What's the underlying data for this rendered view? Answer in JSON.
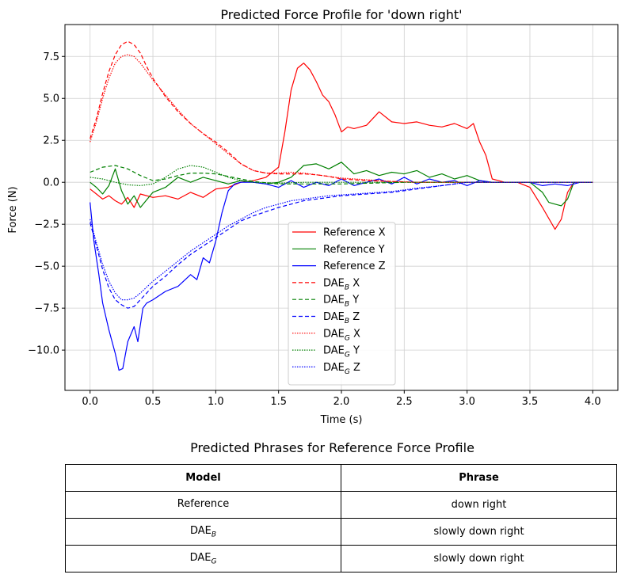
{
  "chart_data": {
    "type": "line",
    "title": "Predicted Force Profile for 'down right'",
    "xlabel": "Time (s)",
    "ylabel": "Force (N)",
    "xlim": [
      -0.2,
      4.2
    ],
    "ylim": [
      -12.4,
      9.4
    ],
    "xticks": [
      0.0,
      0.5,
      1.0,
      1.5,
      2.0,
      2.5,
      3.0,
      3.5,
      4.0
    ],
    "xtick_labels": [
      "0.0",
      "0.5",
      "1.0",
      "1.5",
      "2.0",
      "2.5",
      "3.0",
      "3.5",
      "4.0"
    ],
    "yticks": [
      -10.0,
      -7.5,
      -5.0,
      -2.5,
      0.0,
      2.5,
      5.0,
      7.5
    ],
    "ytick_labels": [
      "−10.0",
      "−7.5",
      "−5.0",
      "−2.5",
      "0.0",
      "2.5",
      "5.0",
      "7.5"
    ],
    "grid": true,
    "legend_position": "lower center",
    "series": [
      {
        "name": "Reference X",
        "color": "#ff0000",
        "dash": "solid",
        "x": [
          0,
          0.05,
          0.1,
          0.15,
          0.2,
          0.25,
          0.3,
          0.35,
          0.4,
          0.5,
          0.6,
          0.7,
          0.8,
          0.9,
          1.0,
          1.1,
          1.2,
          1.3,
          1.4,
          1.5,
          1.55,
          1.6,
          1.65,
          1.7,
          1.75,
          1.8,
          1.85,
          1.9,
          1.95,
          2.0,
          2.05,
          2.1,
          2.2,
          2.3,
          2.4,
          2.5,
          2.6,
          2.7,
          2.8,
          2.9,
          3.0,
          3.05,
          3.1,
          3.15,
          3.2,
          3.25,
          3.3,
          3.4,
          3.5,
          3.6,
          3.7,
          3.75,
          3.8,
          3.85,
          4.0
        ],
        "y": [
          -0.4,
          -0.7,
          -1.0,
          -0.8,
          -1.1,
          -1.3,
          -0.9,
          -1.5,
          -0.7,
          -0.9,
          -0.8,
          -1.0,
          -0.6,
          -0.9,
          -0.4,
          -0.3,
          0.0,
          0.1,
          0.3,
          0.9,
          3.0,
          5.5,
          6.8,
          7.1,
          6.7,
          6.0,
          5.2,
          4.8,
          4.0,
          3.0,
          3.3,
          3.2,
          3.4,
          4.2,
          3.6,
          3.5,
          3.6,
          3.4,
          3.3,
          3.5,
          3.2,
          3.5,
          2.4,
          1.6,
          0.2,
          0.1,
          0.0,
          0.0,
          -0.3,
          -1.5,
          -2.8,
          -2.2,
          -0.6,
          0.0,
          0.0
        ]
      },
      {
        "name": "Reference Y",
        "color": "#008000",
        "dash": "solid",
        "x": [
          0,
          0.05,
          0.1,
          0.15,
          0.2,
          0.25,
          0.3,
          0.35,
          0.4,
          0.5,
          0.6,
          0.7,
          0.8,
          0.9,
          1.0,
          1.1,
          1.2,
          1.3,
          1.4,
          1.5,
          1.6,
          1.7,
          1.8,
          1.9,
          2.0,
          2.1,
          2.2,
          2.3,
          2.4,
          2.5,
          2.6,
          2.7,
          2.8,
          2.9,
          3.0,
          3.1,
          3.2,
          3.3,
          3.4,
          3.5,
          3.6,
          3.65,
          3.7,
          3.75,
          3.8,
          3.85,
          4.0
        ],
        "y": [
          0.0,
          -0.3,
          -0.7,
          -0.2,
          0.8,
          -0.5,
          -1.3,
          -0.8,
          -1.5,
          -0.6,
          -0.3,
          0.3,
          0.0,
          0.3,
          0.1,
          -0.1,
          0.1,
          0.0,
          -0.1,
          0.0,
          0.3,
          1.0,
          1.1,
          0.8,
          1.2,
          0.5,
          0.7,
          0.4,
          0.6,
          0.5,
          0.7,
          0.3,
          0.5,
          0.2,
          0.4,
          0.1,
          0.0,
          0.0,
          0.0,
          0.0,
          -0.6,
          -1.2,
          -1.3,
          -1.4,
          -1.0,
          0.0,
          0.0
        ]
      },
      {
        "name": "Reference Z",
        "color": "#0000ff",
        "dash": "solid",
        "x": [
          0,
          0.03,
          0.07,
          0.1,
          0.15,
          0.2,
          0.23,
          0.26,
          0.3,
          0.35,
          0.38,
          0.42,
          0.45,
          0.5,
          0.6,
          0.7,
          0.8,
          0.85,
          0.9,
          0.95,
          1.0,
          1.05,
          1.1,
          1.15,
          1.2,
          1.3,
          1.4,
          1.5,
          1.6,
          1.7,
          1.8,
          1.9,
          2.0,
          2.1,
          2.2,
          2.3,
          2.4,
          2.5,
          2.6,
          2.7,
          2.8,
          2.9,
          3.0,
          3.1,
          3.2,
          3.3,
          3.4,
          3.5,
          3.6,
          3.7,
          3.8,
          3.9,
          4.0
        ],
        "y": [
          -1.2,
          -3.5,
          -5.5,
          -7.2,
          -8.8,
          -10.2,
          -11.2,
          -11.1,
          -9.5,
          -8.6,
          -9.5,
          -7.5,
          -7.2,
          -7.0,
          -6.5,
          -6.2,
          -5.5,
          -5.8,
          -4.5,
          -4.8,
          -3.5,
          -1.8,
          -0.5,
          -0.1,
          0.0,
          0.0,
          -0.1,
          -0.3,
          0.1,
          -0.3,
          0.0,
          -0.2,
          0.2,
          -0.2,
          0.0,
          0.2,
          -0.1,
          0.3,
          -0.1,
          0.2,
          0.0,
          0.1,
          -0.2,
          0.1,
          0.0,
          0.0,
          0.0,
          0.0,
          -0.2,
          -0.1,
          -0.2,
          0.0,
          0.0
        ]
      },
      {
        "name": "DAE_B X",
        "color": "#ff0000",
        "dash": "dashed",
        "x": [
          0,
          0.05,
          0.1,
          0.15,
          0.2,
          0.25,
          0.3,
          0.35,
          0.4,
          0.45,
          0.5,
          0.6,
          0.7,
          0.8,
          0.9,
          1.0,
          1.1,
          1.2,
          1.3,
          1.4,
          1.5,
          1.6,
          1.7,
          1.8,
          1.9,
          2.0,
          2.2,
          2.4,
          2.6,
          2.8,
          3.0,
          3.2,
          3.5,
          4.0
        ],
        "y": [
          2.6,
          3.8,
          5.3,
          6.6,
          7.6,
          8.2,
          8.4,
          8.2,
          7.7,
          6.9,
          6.2,
          5.1,
          4.2,
          3.5,
          2.9,
          2.4,
          1.8,
          1.1,
          0.7,
          0.55,
          0.5,
          0.5,
          0.5,
          0.45,
          0.35,
          0.2,
          0.1,
          0.05,
          0.0,
          0.0,
          0.0,
          0.0,
          0.0,
          0.0
        ]
      },
      {
        "name": "DAE_B Y",
        "color": "#008000",
        "dash": "dashed",
        "x": [
          0,
          0.1,
          0.2,
          0.3,
          0.4,
          0.5,
          0.6,
          0.7,
          0.8,
          0.9,
          1.0,
          1.1,
          1.2,
          1.3,
          1.5,
          1.7,
          2.0,
          2.5,
          3.0,
          3.5,
          4.0
        ],
        "y": [
          0.6,
          0.9,
          1.0,
          0.8,
          0.4,
          0.1,
          0.2,
          0.4,
          0.55,
          0.55,
          0.5,
          0.35,
          0.2,
          0.05,
          -0.1,
          -0.1,
          -0.1,
          0.0,
          0.0,
          0.0,
          0.0
        ]
      },
      {
        "name": "DAE_B Z",
        "color": "#0000ff",
        "dash": "dashed",
        "x": [
          0,
          0.05,
          0.1,
          0.15,
          0.2,
          0.25,
          0.3,
          0.35,
          0.4,
          0.5,
          0.6,
          0.7,
          0.8,
          0.9,
          1.0,
          1.1,
          1.2,
          1.3,
          1.4,
          1.5,
          1.6,
          1.7,
          1.8,
          1.9,
          2.0,
          2.2,
          2.4,
          2.6,
          2.8,
          3.0,
          3.5,
          4.0
        ],
        "y": [
          -2.4,
          -3.8,
          -5.2,
          -6.3,
          -7.0,
          -7.3,
          -7.5,
          -7.4,
          -7.0,
          -6.2,
          -5.6,
          -4.9,
          -4.3,
          -3.8,
          -3.3,
          -2.8,
          -2.3,
          -2.0,
          -1.75,
          -1.5,
          -1.3,
          -1.1,
          -1.0,
          -0.9,
          -0.8,
          -0.7,
          -0.6,
          -0.4,
          -0.2,
          0.0,
          0.0,
          0.0
        ]
      },
      {
        "name": "DAE_G X",
        "color": "#ff0000",
        "dash": "dotted",
        "x": [
          0,
          0.05,
          0.1,
          0.15,
          0.2,
          0.25,
          0.3,
          0.35,
          0.4,
          0.45,
          0.5,
          0.6,
          0.7,
          0.8,
          0.9,
          1.0,
          1.1,
          1.2,
          1.3,
          1.4,
          1.5,
          1.6,
          1.7,
          1.8,
          1.9,
          2.0,
          2.2,
          2.4,
          2.6,
          2.8,
          3.0,
          3.5,
          4.0
        ],
        "y": [
          2.4,
          3.6,
          5.0,
          6.2,
          7.1,
          7.5,
          7.6,
          7.5,
          7.1,
          6.6,
          6.1,
          5.2,
          4.3,
          3.5,
          2.9,
          2.3,
          1.7,
          1.1,
          0.7,
          0.55,
          0.55,
          0.6,
          0.55,
          0.45,
          0.35,
          0.25,
          0.15,
          0.05,
          0.0,
          0.0,
          0.0,
          0.0,
          0.0
        ]
      },
      {
        "name": "DAE_G Y",
        "color": "#008000",
        "dash": "dotted",
        "x": [
          0,
          0.1,
          0.2,
          0.3,
          0.4,
          0.5,
          0.6,
          0.7,
          0.8,
          0.9,
          1.0,
          1.1,
          1.2,
          1.3,
          1.5,
          1.7,
          2.0,
          2.5,
          3.0,
          3.5,
          4.0
        ],
        "y": [
          0.3,
          0.2,
          0.0,
          -0.15,
          -0.2,
          -0.1,
          0.3,
          0.8,
          1.0,
          0.9,
          0.6,
          0.3,
          0.1,
          0.0,
          -0.05,
          0.0,
          0.0,
          0.0,
          0.0,
          0.0,
          0.0
        ]
      },
      {
        "name": "DAE_G Z",
        "color": "#0000ff",
        "dash": "dotted",
        "x": [
          0,
          0.05,
          0.1,
          0.15,
          0.2,
          0.25,
          0.3,
          0.35,
          0.4,
          0.5,
          0.6,
          0.7,
          0.8,
          0.9,
          1.0,
          1.1,
          1.2,
          1.3,
          1.4,
          1.5,
          1.6,
          1.7,
          1.8,
          1.9,
          2.0,
          2.2,
          2.4,
          2.6,
          2.8,
          3.0,
          3.5,
          4.0
        ],
        "y": [
          -2.2,
          -3.6,
          -4.9,
          -5.9,
          -6.6,
          -7.0,
          -7.0,
          -6.9,
          -6.6,
          -5.9,
          -5.3,
          -4.7,
          -4.1,
          -3.6,
          -3.1,
          -2.6,
          -2.2,
          -1.8,
          -1.5,
          -1.3,
          -1.1,
          -1.0,
          -0.9,
          -0.8,
          -0.75,
          -0.65,
          -0.55,
          -0.35,
          -0.2,
          0.0,
          0.0,
          0.0
        ]
      }
    ]
  },
  "legend": [
    {
      "label": "Reference X",
      "sub": "",
      "suffix": "",
      "color": "#ff0000",
      "dash": "solid"
    },
    {
      "label": "Reference Y",
      "sub": "",
      "suffix": "",
      "color": "#008000",
      "dash": "solid"
    },
    {
      "label": "Reference Z",
      "sub": "",
      "suffix": "",
      "color": "#0000ff",
      "dash": "solid"
    },
    {
      "label": "DAE",
      "sub": "B",
      "suffix": " X",
      "color": "#ff0000",
      "dash": "dashed"
    },
    {
      "label": "DAE",
      "sub": "B",
      "suffix": " Y",
      "color": "#008000",
      "dash": "dashed"
    },
    {
      "label": "DAE",
      "sub": "B",
      "suffix": " Z",
      "color": "#0000ff",
      "dash": "dashed"
    },
    {
      "label": "DAE",
      "sub": "G",
      "suffix": " X",
      "color": "#ff0000",
      "dash": "dotted"
    },
    {
      "label": "DAE",
      "sub": "G",
      "suffix": " Y",
      "color": "#008000",
      "dash": "dotted"
    },
    {
      "label": "DAE",
      "sub": "G",
      "suffix": " Z",
      "color": "#0000ff",
      "dash": "dotted"
    }
  ],
  "table": {
    "title": "Predicted Phrases for Reference Force Profile",
    "headers": [
      "Model",
      "Phrase"
    ],
    "rows": [
      {
        "model": "Reference",
        "model_sub": "",
        "phrase": "down right"
      },
      {
        "model": "DAE",
        "model_sub": "B",
        "phrase": "slowly down right"
      },
      {
        "model": "DAE",
        "model_sub": "G",
        "phrase": "slowly down right"
      }
    ]
  }
}
